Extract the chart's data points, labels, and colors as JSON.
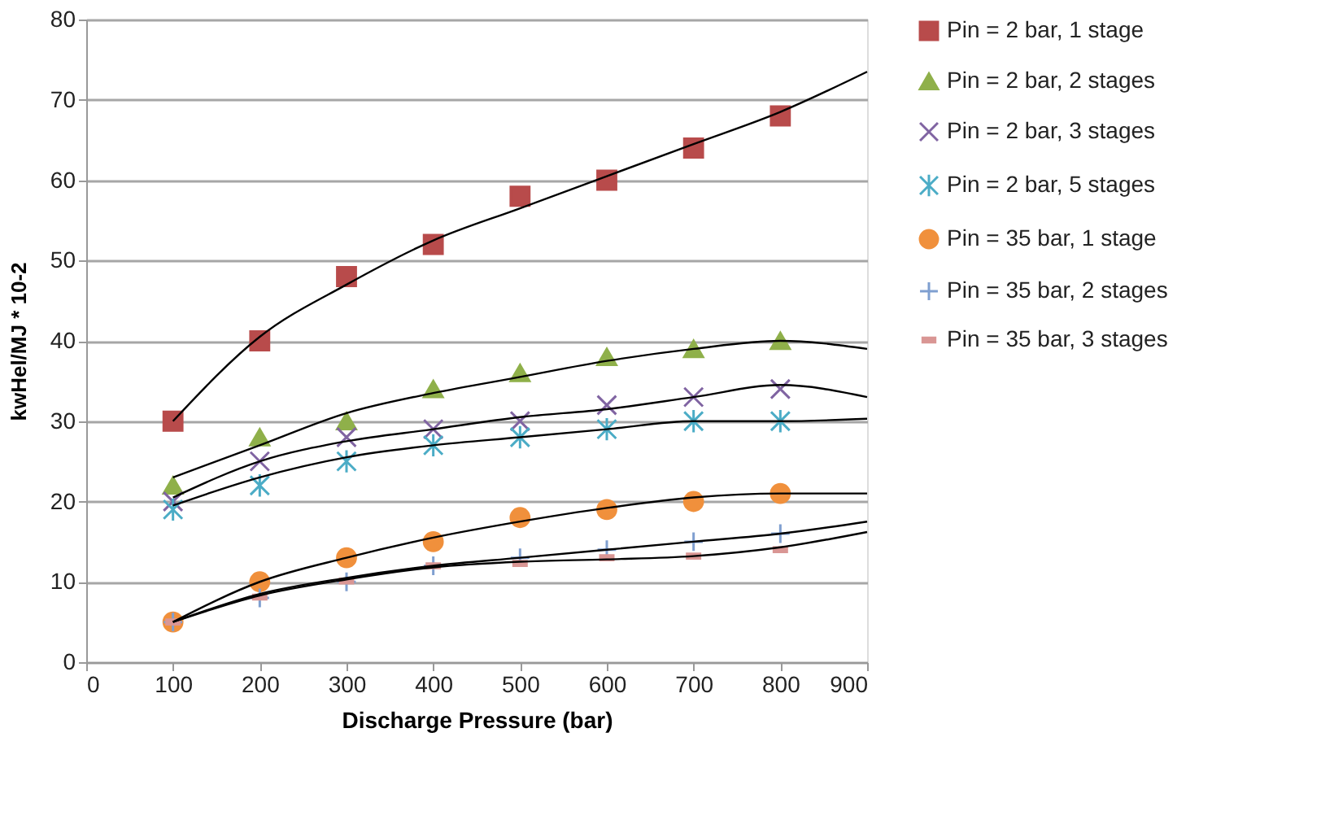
{
  "chart_data": {
    "type": "scatter",
    "xlabel": "Discharge Pressure (bar)",
    "ylabel": "kwHel/MJ * 10-2",
    "x": [
      100,
      200,
      300,
      400,
      500,
      600,
      700,
      800
    ],
    "xlim": [
      0,
      900
    ],
    "xticks": [
      0,
      100,
      200,
      300,
      400,
      500,
      600,
      700,
      800,
      900
    ],
    "ylim": [
      0,
      80
    ],
    "yticks": [
      0,
      10,
      20,
      30,
      40,
      50,
      60,
      70,
      80
    ],
    "grid": "y",
    "legend": "right",
    "series": [
      {
        "name": "Pin = 2 bar, 1 stage",
        "color": "#b84b4b",
        "marker": "square",
        "values": [
          30,
          40,
          48,
          52,
          58,
          60,
          64,
          68
        ]
      },
      {
        "name": "Pin = 2 bar, 2 stages",
        "color": "#8fb04a",
        "marker": "triangle",
        "values": [
          22,
          28,
          30,
          34,
          36,
          38,
          39,
          40
        ]
      },
      {
        "name": "Pin = 2 bar, 3 stages",
        "color": "#8064a2",
        "marker": "cross",
        "values": [
          20,
          25,
          28,
          29,
          30,
          32,
          33,
          34
        ]
      },
      {
        "name": "Pin = 2 bar, 5 stages",
        "color": "#4bacc6",
        "values": [
          19,
          22,
          25,
          27,
          28,
          29,
          30,
          30
        ]
      },
      {
        "name": "Pin = 35 bar, 1 stage",
        "color": "#f0903c",
        "marker": "circle",
        "values": [
          5,
          10,
          13,
          15,
          18,
          19,
          20,
          21
        ]
      },
      {
        "name": "Pin = 35 bar, 2 stages",
        "color": "#7f9fd0",
        "values": [
          5,
          8,
          10,
          12,
          13,
          14,
          15,
          16
        ]
      },
      {
        "name": "Pin = 35 bar, 3 stages",
        "color": "#d99694",
        "values": [
          5,
          8.1,
          10.1,
          12,
          12.3,
          13,
          13.2,
          14
        ]
      },
      {
        "type": "line",
        "color": "#000000",
        "x": [
          100,
          200,
          300,
          400,
          500,
          600,
          700,
          800,
          900
        ],
        "values": [
          30,
          40.5,
          47,
          52.5,
          56.5,
          60.5,
          64.5,
          68.5,
          73.5
        ]
      },
      {
        "type": "line",
        "color": "#000000",
        "x": [
          100,
          200,
          300,
          400,
          500,
          600,
          700,
          800,
          900
        ],
        "values": [
          23,
          27,
          31,
          33.5,
          35.5,
          37.5,
          39,
          40,
          39
        ]
      },
      {
        "type": "line",
        "color": "#000000",
        "x": [
          100,
          200,
          300,
          400,
          500,
          600,
          700,
          800,
          900
        ],
        "values": [
          20.5,
          25,
          27.5,
          29,
          30.5,
          31.5,
          33,
          34.5,
          33
        ]
      },
      {
        "type": "line",
        "color": "#000000",
        "x": [
          100,
          200,
          300,
          400,
          500,
          600,
          700,
          800,
          900
        ],
        "values": [
          19.5,
          23,
          25.5,
          27,
          28,
          29,
          30,
          30,
          30.3
        ]
      },
      {
        "type": "line",
        "color": "#000000",
        "x": [
          100,
          200,
          300,
          400,
          500,
          600,
          700,
          800,
          900
        ],
        "values": [
          5,
          10,
          13,
          15.5,
          17.5,
          19.2,
          20.5,
          21,
          21
        ]
      },
      {
        "type": "line",
        "color": "#000000",
        "x": [
          100,
          200,
          300,
          400,
          500,
          600,
          700,
          800,
          900
        ],
        "values": [
          5,
          8.5,
          10.5,
          12,
          13,
          14,
          15,
          16,
          17.5
        ]
      },
      {
        "type": "line",
        "color": "#000000",
        "x": [
          100,
          200,
          300,
          400,
          500,
          600,
          700,
          800,
          900
        ],
        "values": [
          5,
          8.3,
          10.3,
          11.8,
          12.5,
          12.8,
          13.2,
          14.3,
          16.2
        ]
      }
    ]
  }
}
